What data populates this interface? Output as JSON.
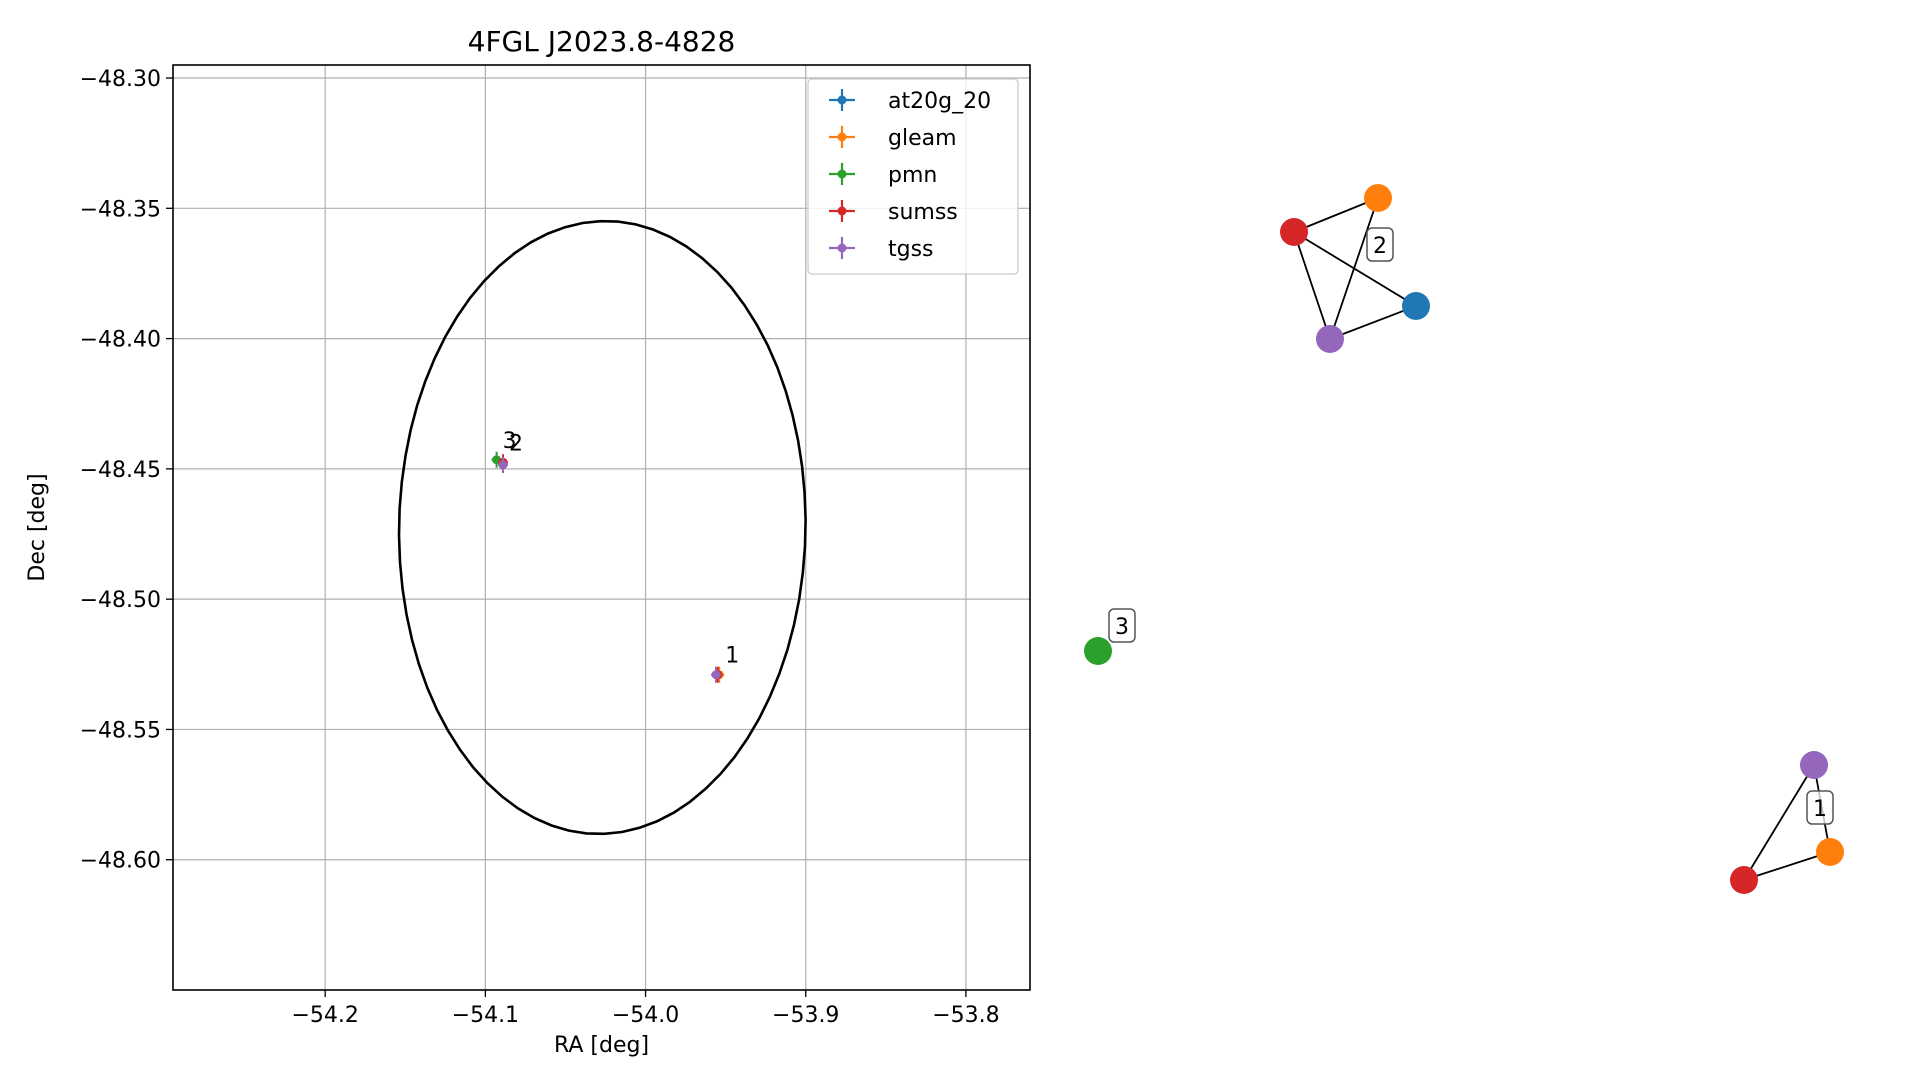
{
  "chart_data": [
    {
      "type": "scatter",
      "title": "4FGL J2023.8-4828",
      "xlabel": "RA [deg]",
      "ylabel": "Dec [deg]",
      "xlim": [
        -54.295,
        -53.76
      ],
      "ylim": [
        -48.65,
        -48.295
      ],
      "x_ticks": [
        -54.2,
        -54.1,
        -54.0,
        -53.9,
        -53.8
      ],
      "x_tick_labels": [
        "−54.2",
        "−54.1",
        "−54.0",
        "−53.9",
        "−53.8"
      ],
      "y_ticks": [
        -48.3,
        -48.35,
        -48.4,
        -48.45,
        -48.5,
        -48.55,
        -48.6
      ],
      "y_tick_labels": [
        "−48.30",
        "−48.35",
        "−48.40",
        "−48.45",
        "−48.50",
        "−48.55",
        "−48.60"
      ],
      "grid": true,
      "legend_position": "upper right",
      "ellipse": {
        "center_ra": -54.027,
        "center_dec": -48.4725,
        "semi_axis_ra": 0.127,
        "semi_axis_dec": 0.1175,
        "rotation_deg": 6,
        "color": "#000000"
      },
      "series": [
        {
          "name": "at20g_20",
          "color": "#1f77b4",
          "points": [
            {
              "ra": -54.089,
              "dec": -48.4475
            }
          ]
        },
        {
          "name": "gleam",
          "color": "#ff7f0e",
          "points": [
            {
              "ra": -54.089,
              "dec": -48.4475
            },
            {
              "ra": -53.954,
              "dec": -48.529
            }
          ]
        },
        {
          "name": "pmn",
          "color": "#2ca02c",
          "points": [
            {
              "ra": -54.093,
              "dec": -48.4465
            }
          ]
        },
        {
          "name": "sumss",
          "color": "#d62728",
          "points": [
            {
              "ra": -54.089,
              "dec": -48.4475
            },
            {
              "ra": -53.955,
              "dec": -48.529
            }
          ]
        },
        {
          "name": "tgss",
          "color": "#9467bd",
          "points": [
            {
              "ra": -54.089,
              "dec": -48.4485
            },
            {
              "ra": -53.956,
              "dec": -48.529
            }
          ]
        }
      ],
      "annotations": [
        {
          "text": "3",
          "ra": -54.093,
          "dec": -48.4465
        },
        {
          "text": "2",
          "ra": -54.089,
          "dec": -48.4475
        },
        {
          "text": "1",
          "ra": -53.954,
          "dec": -48.529
        }
      ]
    },
    {
      "type": "network",
      "nodes": [
        {
          "id": "g2_sumss",
          "catalog": "sumss",
          "color": "#d62728"
        },
        {
          "id": "g2_gleam",
          "catalog": "gleam",
          "color": "#ff7f0e"
        },
        {
          "id": "g2_at20g",
          "catalog": "at20g_20",
          "color": "#1f77b4"
        },
        {
          "id": "g2_tgss",
          "catalog": "tgss",
          "color": "#9467bd"
        },
        {
          "id": "g3_pmn",
          "catalog": "pmn",
          "color": "#2ca02c"
        },
        {
          "id": "g1_tgss",
          "catalog": "tgss",
          "color": "#9467bd"
        },
        {
          "id": "g1_gleam",
          "catalog": "gleam",
          "color": "#ff7f0e"
        },
        {
          "id": "g1_sumss",
          "catalog": "sumss",
          "color": "#d62728"
        }
      ],
      "edges": [
        [
          "g2_sumss",
          "g2_gleam"
        ],
        [
          "g2_sumss",
          "g2_at20g"
        ],
        [
          "g2_sumss",
          "g2_tgss"
        ],
        [
          "g2_gleam",
          "g2_tgss"
        ],
        [
          "g2_tgss",
          "g2_at20g"
        ],
        [
          "g1_tgss",
          "g1_gleam"
        ],
        [
          "g1_tgss",
          "g1_sumss"
        ],
        [
          "g1_gleam",
          "g1_sumss"
        ]
      ],
      "group_labels": [
        {
          "text": "2",
          "group": "2"
        },
        {
          "text": "3",
          "group": "3"
        },
        {
          "text": "1",
          "group": "1"
        }
      ]
    }
  ]
}
